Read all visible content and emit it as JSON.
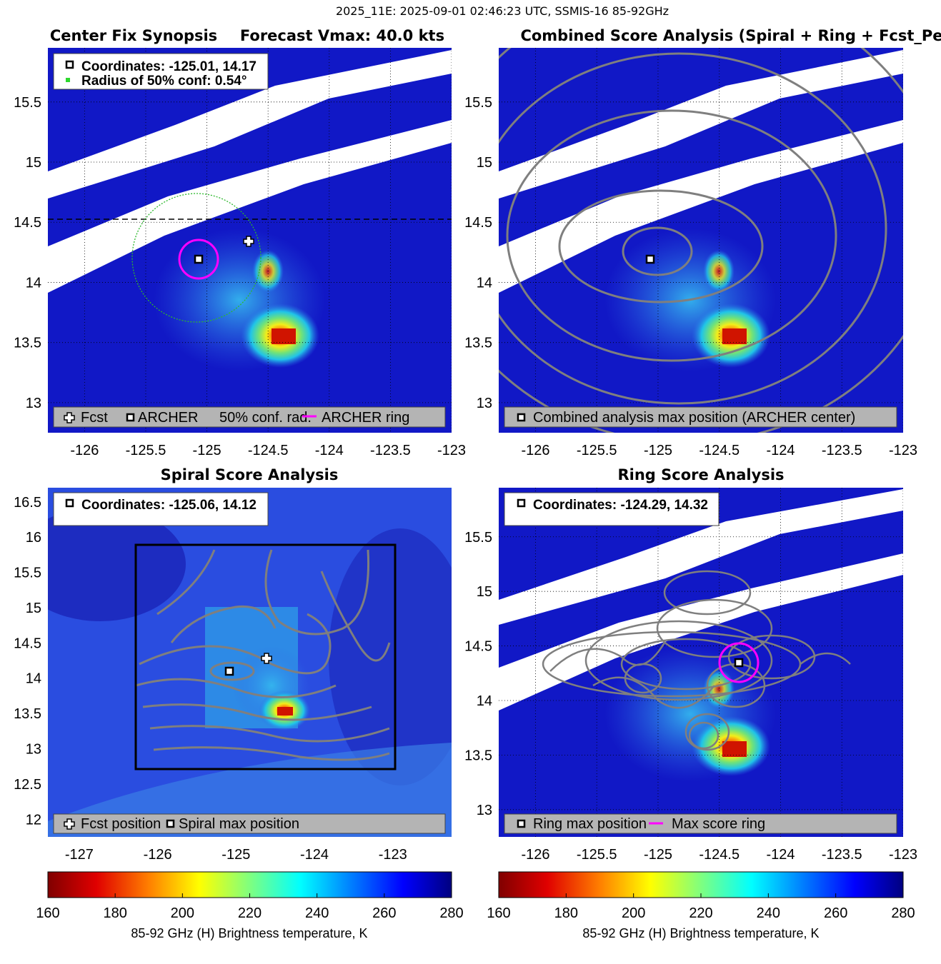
{
  "figure": {
    "suptitle": "2025_11E: 2025-09-01 02:46:23 UTC, SSMIS-16 85-92GHz"
  },
  "colors": {
    "pixel_high": "#0e17c8",
    "pixel_mid": "#2a57e4",
    "swath_gap": "#ffffff",
    "contour": "#7f7f7f",
    "ring": "#ff00ff",
    "conf_circle": "#2db82d",
    "legend_bg": "#b4b4b4",
    "info_bg": "#ffffff"
  },
  "chart_data": [
    {
      "id": "synopsis",
      "type": "heatmap",
      "title_left": "Center Fix Synopsis",
      "title_right": "Forecast Vmax: 40.0 kts",
      "xlim": [
        -126.3,
        -123
      ],
      "ylim": [
        12.75,
        15.95
      ],
      "xticks": [
        "-126",
        "-125.5",
        "-125",
        "-124.5",
        "-124",
        "-123.5",
        "-123"
      ],
      "yticks": [
        "13",
        "13.5",
        "14",
        "14.5",
        "15",
        "15.5"
      ],
      "grid": "dotted",
      "info": [
        "Coordinates: -125.01, 14.17",
        "Radius of 50% conf: 0.54°"
      ],
      "legend": [
        "Fcst",
        "ARCHER",
        "50% conf. rad.",
        "ARCHER ring"
      ],
      "archer_center": [
        -125.01,
        14.17
      ],
      "forecast_position": [
        -124.6,
        14.32
      ],
      "conf_radius_deg": 0.54,
      "ring_radius_deg": 0.17,
      "reference_line_lat": 14.5
    },
    {
      "id": "combined",
      "type": "heatmap",
      "title": "Combined Score Analysis (Spiral + Ring + Fcst_Pe",
      "xlim": [
        -126.3,
        -123
      ],
      "ylim": [
        12.75,
        15.95
      ],
      "xticks": [
        "-126",
        "-125.5",
        "-125",
        "-124.5",
        "-124",
        "-123.5",
        "-123"
      ],
      "yticks": [
        "13",
        "13.5",
        "14",
        "14.5",
        "15",
        "15.5"
      ],
      "grid": "dotted",
      "legend": [
        "Combined analysis max position (ARCHER center)"
      ],
      "max_position": [
        -125.01,
        14.17
      ]
    },
    {
      "id": "spiral",
      "type": "heatmap",
      "title": "Spiral Score Analysis",
      "xlim": [
        -127.4,
        -122.25
      ],
      "ylim": [
        11.75,
        16.7
      ],
      "xticks": [
        "-127",
        "-126",
        "-125",
        "-124",
        "-123"
      ],
      "yticks": [
        "12",
        "12.5",
        "13",
        "13.5",
        "14",
        "14.5",
        "15",
        "15.5",
        "16",
        "16.5"
      ],
      "grid": "none",
      "info": [
        "Coordinates: -125.06, 14.12"
      ],
      "legend": [
        "Fcst position",
        "Spiral max position"
      ],
      "max_position": [
        -125.06,
        14.12
      ],
      "forecast_position": [
        -124.6,
        14.32
      ],
      "search_box": {
        "lon": [
          -126.3,
          -122.95
        ],
        "lat": [
          12.75,
          15.95
        ]
      }
    },
    {
      "id": "ring",
      "type": "heatmap",
      "title": "Ring Score Analysis",
      "xlim": [
        -126.3,
        -123
      ],
      "ylim": [
        12.75,
        15.95
      ],
      "xticks": [
        "-126",
        "-125.5",
        "-125",
        "-124.5",
        "-124",
        "-123.5",
        "-123"
      ],
      "yticks": [
        "13",
        "13.5",
        "14",
        "14.5",
        "15",
        "15.5"
      ],
      "grid": "dotted",
      "info": [
        "Coordinates: -124.29, 14.32"
      ],
      "legend": [
        "Ring max position",
        "Max score ring"
      ],
      "max_position": [
        -124.29,
        14.32
      ],
      "ring_radius_deg": 0.17
    }
  ],
  "colorbars": [
    {
      "id": "cb-left",
      "ticks": [
        "160",
        "180",
        "200",
        "220",
        "240",
        "260",
        "280"
      ],
      "range": [
        160,
        280
      ],
      "label": "85-92 GHz (H) Brightness temperature, K"
    },
    {
      "id": "cb-right",
      "ticks": [
        "160",
        "180",
        "200",
        "220",
        "240",
        "260",
        "280"
      ],
      "range": [
        160,
        280
      ],
      "label": "85-92 GHz (H) Brightness temperature, K"
    }
  ]
}
